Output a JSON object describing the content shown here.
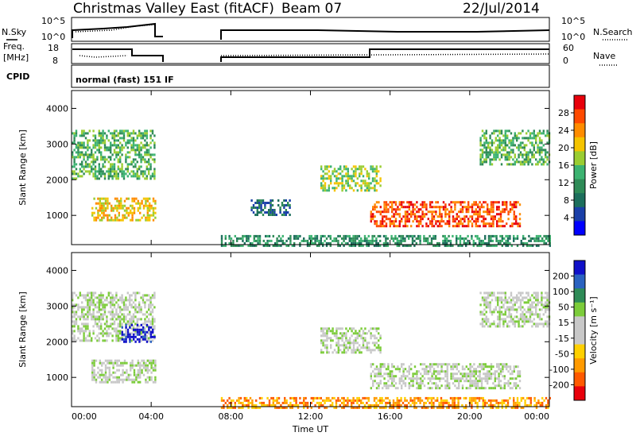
{
  "header": {
    "title": "Christmas Valley East (fitACF)",
    "beam": "Beam 07",
    "date": "22/Jul/2014"
  },
  "meta_panels": {
    "nsky": {
      "label": "N.Sky",
      "ticks": [
        "10^5",
        "10^0"
      ]
    },
    "nsearch": {
      "label": "N.Search",
      "ticks": [
        "10^5",
        "10^0"
      ]
    },
    "freq": {
      "label_line1": "Freq.",
      "label_line2": "[MHz]",
      "ticks": [
        "18",
        "8"
      ]
    },
    "nave": {
      "label": "Nave",
      "ticks": [
        "60",
        "0"
      ]
    },
    "cpid": {
      "label": "CPID",
      "program": "normal (fast) 151 IF"
    }
  },
  "chart_data": [
    {
      "type": "heatmap",
      "name": "power",
      "ylabel": "Slant Range [km]",
      "xlabel": "",
      "ylim": [
        180,
        4500
      ],
      "yticks": [
        "1000",
        "2000",
        "3000",
        "4000"
      ],
      "xticks": [
        "00:00",
        "04:00",
        "08:00",
        "12:00",
        "16:00",
        "20:00",
        "00:00"
      ],
      "colorbar": {
        "label": "Power [dB]",
        "ticks": [
          "28",
          "24",
          "20",
          "16",
          "12",
          "8",
          "4"
        ],
        "colors": [
          "#e8000b",
          "#ff4a00",
          "#ff8c00",
          "#f5c400",
          "#9acd32",
          "#3cb371",
          "#2e8b57",
          "#1c6e5c",
          "#1a3fa8",
          "#0000ff"
        ]
      },
      "echo_regions": [
        {
          "t": [
            0.0,
            4.2
          ],
          "range": [
            2000,
            3400
          ],
          "dB": 14
        },
        {
          "t": [
            1.0,
            4.2
          ],
          "range": [
            850,
            1500
          ],
          "dB": 20
        },
        {
          "t": [
            9.0,
            11.0
          ],
          "range": [
            1000,
            1450
          ],
          "dB": 8
        },
        {
          "t": [
            12.5,
            15.5
          ],
          "range": [
            1700,
            2400
          ],
          "dB": 16
        },
        {
          "t": [
            15.0,
            22.5
          ],
          "range": [
            700,
            1400
          ],
          "dB": 24
        },
        {
          "t": [
            20.5,
            24.0
          ],
          "range": [
            2400,
            3400
          ],
          "dB": 12
        },
        {
          "t": [
            7.5,
            24.0
          ],
          "range": [
            180,
            450
          ],
          "dB": 10
        }
      ]
    },
    {
      "type": "heatmap",
      "name": "velocity",
      "ylabel": "Slant Range [km]",
      "xlabel": "Time UT",
      "ylim": [
        180,
        4500
      ],
      "yticks": [
        "1000",
        "2000",
        "3000",
        "4000"
      ],
      "xticks": [
        "00:00",
        "04:00",
        "08:00",
        "12:00",
        "16:00",
        "20:00",
        "00:00"
      ],
      "colorbar": {
        "label": "Velocity [m s⁻¹]",
        "ticks": [
          "200",
          "100",
          "50",
          "15",
          "-15",
          "-50",
          "-100",
          "-200"
        ],
        "colors": [
          "#1010c8",
          "#2a62c0",
          "#2e8b57",
          "#7ccc3a",
          "#c8c8c8",
          "#c8c8c8",
          "#ffd000",
          "#ff9a00",
          "#ff5a00",
          "#e8000b"
        ]
      },
      "echo_regions": [
        {
          "t": [
            0.0,
            4.2
          ],
          "range": [
            2000,
            3400
          ],
          "v": 0
        },
        {
          "t": [
            2.5,
            4.2
          ],
          "range": [
            2000,
            2500
          ],
          "v": 200
        },
        {
          "t": [
            1.0,
            4.2
          ],
          "range": [
            850,
            1500
          ],
          "v": 0
        },
        {
          "t": [
            12.5,
            15.5
          ],
          "range": [
            1700,
            2400
          ],
          "v": 0
        },
        {
          "t": [
            15.0,
            22.5
          ],
          "range": [
            700,
            1400
          ],
          "v": 0
        },
        {
          "t": [
            20.5,
            24.0
          ],
          "range": [
            2400,
            3400
          ],
          "v": 0
        },
        {
          "t": [
            7.5,
            24.0
          ],
          "range": [
            180,
            450
          ],
          "v": -50
        }
      ]
    }
  ]
}
